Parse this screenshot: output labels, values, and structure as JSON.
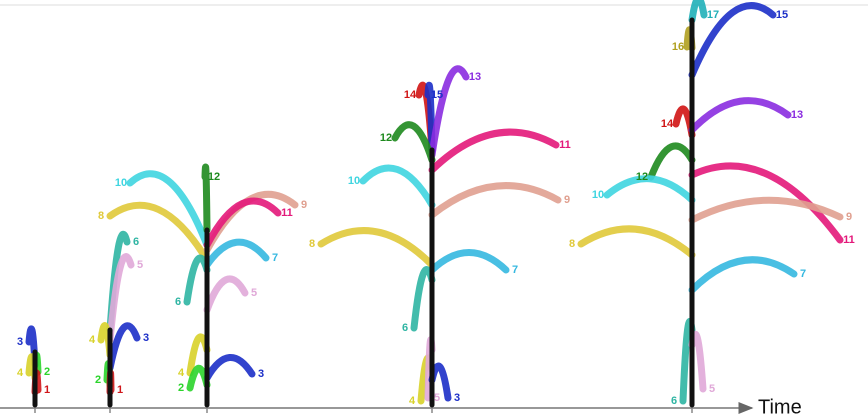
{
  "plants": [
    {
      "leaves": [
        {
          "label": "3",
          "color": "#1c2fc8"
        },
        {
          "label": "2",
          "color": "#2bd42b"
        },
        {
          "label": "4",
          "color": "#d8d22a"
        },
        {
          "label": "1",
          "color": "#d0161a"
        }
      ]
    },
    {
      "leaves": [
        {
          "label": "6",
          "color": "#2fb5a3"
        },
        {
          "label": "5",
          "color": "#e0a8d8"
        },
        {
          "label": "4",
          "color": "#d8d22a"
        },
        {
          "label": "3",
          "color": "#1c2fc8"
        },
        {
          "label": "2",
          "color": "#2bd42b"
        },
        {
          "label": "1",
          "color": "#d0161a"
        }
      ]
    },
    {
      "leaves": [
        {
          "label": "10",
          "color": "#3fd5e0"
        },
        {
          "label": "12",
          "color": "#1e8a1e"
        },
        {
          "label": "8",
          "color": "#e0c93a"
        },
        {
          "label": "9",
          "color": "#e0a090"
        },
        {
          "label": "11",
          "color": "#e3187a"
        },
        {
          "label": "7",
          "color": "#35b8e0"
        },
        {
          "label": "6",
          "color": "#2fb5a3"
        },
        {
          "label": "5",
          "color": "#e0a8d8"
        },
        {
          "label": "4",
          "color": "#d8d22a"
        },
        {
          "label": "3",
          "color": "#1c2fc8"
        },
        {
          "label": "2",
          "color": "#2bd42b"
        }
      ]
    },
    {
      "leaves": [
        {
          "label": "14",
          "color": "#d01414"
        },
        {
          "label": "15",
          "color": "#1c2fc8"
        },
        {
          "label": "13",
          "color": "#8a2ce0"
        },
        {
          "label": "12",
          "color": "#1e8a1e"
        },
        {
          "label": "11",
          "color": "#e3187a"
        },
        {
          "label": "10",
          "color": "#3fd5e0"
        },
        {
          "label": "9",
          "color": "#e0a090"
        },
        {
          "label": "8",
          "color": "#e0c93a"
        },
        {
          "label": "7",
          "color": "#35b8e0"
        },
        {
          "label": "6",
          "color": "#2fb5a3"
        },
        {
          "label": "4",
          "color": "#d8d22a"
        },
        {
          "label": "5",
          "color": "#e0a8d8"
        },
        {
          "label": "3",
          "color": "#1c2fc8"
        }
      ]
    },
    {
      "leaves": [
        {
          "label": "17",
          "color": "#20b0b8"
        },
        {
          "label": "15",
          "color": "#1c2fc8"
        },
        {
          "label": "16",
          "color": "#b0a020"
        },
        {
          "label": "14",
          "color": "#d01414"
        },
        {
          "label": "13",
          "color": "#8a2ce0"
        },
        {
          "label": "12",
          "color": "#1e8a1e"
        },
        {
          "label": "10",
          "color": "#3fd5e0"
        },
        {
          "label": "11",
          "color": "#e3187a"
        },
        {
          "label": "9",
          "color": "#e0a090"
        },
        {
          "label": "8",
          "color": "#e0c93a"
        },
        {
          "label": "7",
          "color": "#35b8e0"
        },
        {
          "label": "6",
          "color": "#2fb5a3"
        },
        {
          "label": "5",
          "color": "#e0a8d8"
        }
      ]
    }
  ],
  "axis": {
    "label": "Time"
  }
}
